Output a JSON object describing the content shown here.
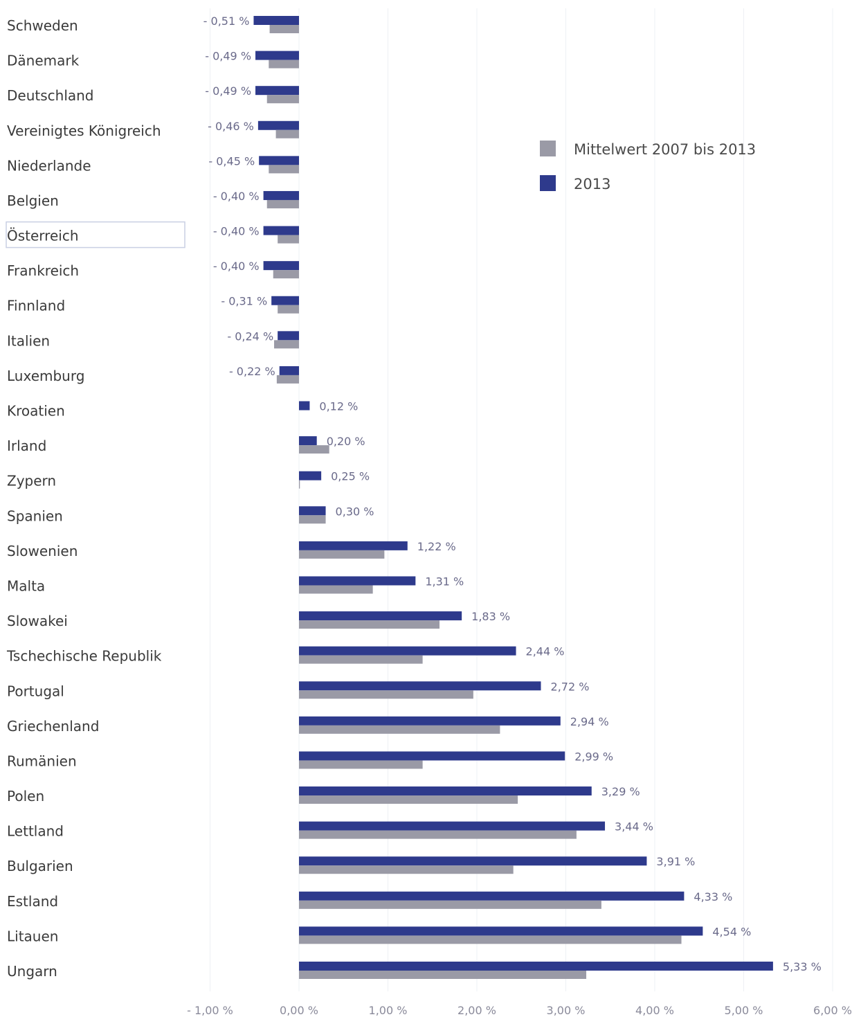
{
  "chart_data": {
    "type": "bar",
    "orientation": "horizontal",
    "categories": [
      "Schweden",
      "Dänemark",
      "Deutschland",
      "Vereinigtes Königreich",
      "Niederlande",
      "Belgien",
      "Österreich",
      "Frankreich",
      "Finnland",
      "Italien",
      "Luxemburg",
      "Kroatien",
      "Irland",
      "Zypern",
      "Spanien",
      "Slowenien",
      "Malta",
      "Slowakei",
      "Tschechische Republik",
      "Portugal",
      "Griechenland",
      "Rumänien",
      "Polen",
      "Lettland",
      "Bulgarien",
      "Estland",
      "Litauen",
      "Ungarn"
    ],
    "series": [
      {
        "name": "2013",
        "color": "#2e3a8c",
        "values": [
          -0.51,
          -0.49,
          -0.49,
          -0.46,
          -0.45,
          -0.4,
          -0.4,
          -0.4,
          -0.31,
          -0.24,
          -0.22,
          0.12,
          0.2,
          0.25,
          0.3,
          1.22,
          1.31,
          1.83,
          2.44,
          2.72,
          2.94,
          2.99,
          3.29,
          3.44,
          3.91,
          4.33,
          4.54,
          5.33
        ],
        "labels": [
          "- 0,51 %",
          "- 0,49 %",
          "- 0,49 %",
          "- 0,46 %",
          "- 0,45 %",
          "- 0,40 %",
          "- 0,40 %",
          "- 0,40 %",
          "- 0,31 %",
          "- 0,24 %",
          "- 0,22 %",
          "0,12 %",
          "0,20 %",
          "0,25 %",
          "0,30 %",
          "1,22 %",
          "1,31 %",
          "1,83 %",
          "2,44 %",
          "2,72 %",
          "2,94 %",
          "2,99 %",
          "3,29 %",
          "3,44 %",
          "3,91 %",
          "4,33 %",
          "4,54 %",
          "5,33 %"
        ]
      },
      {
        "name": "Mittelwert 2007 bis 2013",
        "color": "#9a9aa6",
        "values": [
          -0.33,
          -0.34,
          -0.36,
          -0.26,
          -0.34,
          -0.36,
          -0.24,
          -0.29,
          -0.24,
          -0.28,
          -0.25,
          0.0,
          0.34,
          0.01,
          0.3,
          0.96,
          0.83,
          1.58,
          1.39,
          1.96,
          2.26,
          1.39,
          2.46,
          3.12,
          2.41,
          3.4,
          4.3,
          3.23
        ]
      }
    ],
    "xlim": [
      -1.0,
      6.0
    ],
    "xticks": [
      "- 1,00 %",
      "0,00 %",
      "1,00 %",
      "2,00 %",
      "3,00 %",
      "4,00 %",
      "5,00 %",
      "6,00 %"
    ],
    "grid": true,
    "legend_position": "top-right",
    "highlighted_category": "Österreich"
  }
}
